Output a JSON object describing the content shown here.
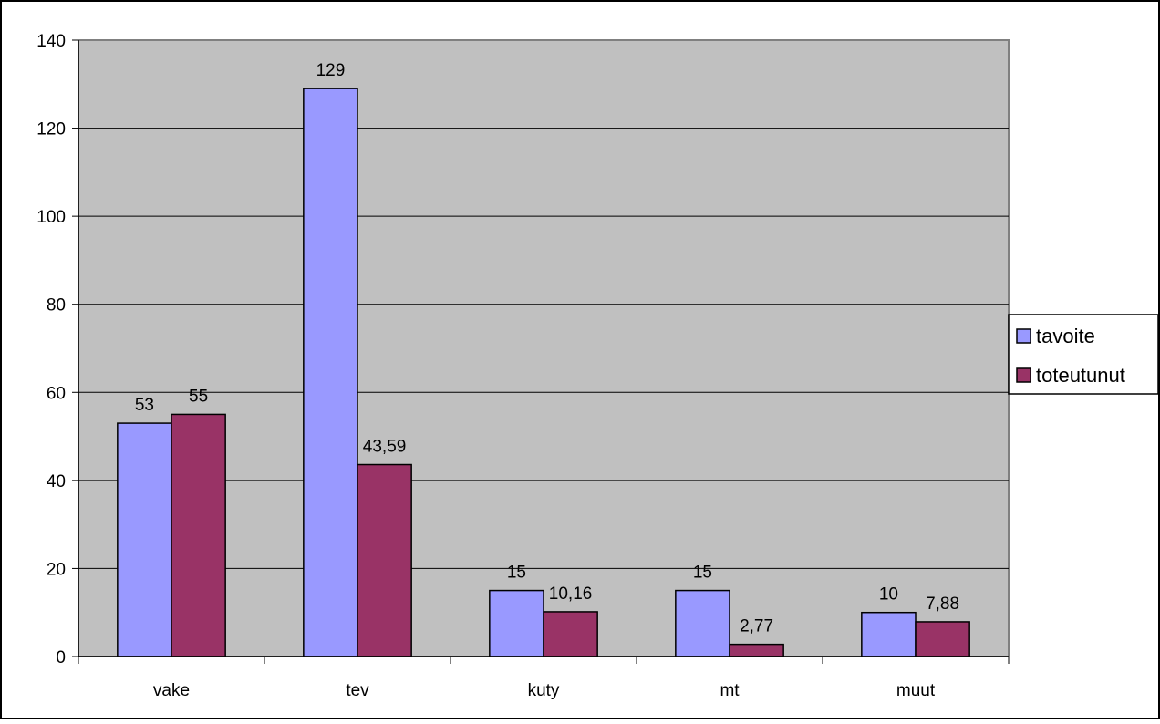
{
  "chart_data": {
    "type": "bar",
    "title": "",
    "xlabel": "",
    "ylabel": "",
    "categories": [
      "vake",
      "tev",
      "kuty",
      "mt",
      "muut"
    ],
    "series": [
      {
        "name": "tavoite",
        "color": "#9999ff",
        "values": [
          53,
          129,
          15,
          15,
          10
        ],
        "labels": [
          "53",
          "129",
          "15",
          "15",
          "10"
        ]
      },
      {
        "name": "toteutunut",
        "color": "#993366",
        "values": [
          55,
          43.59,
          10.16,
          2.77,
          7.88
        ],
        "labels": [
          "55",
          "43,59",
          "10,16",
          "2,77",
          "7,88"
        ]
      }
    ],
    "ylim": [
      0,
      140
    ],
    "yticks": [
      "0",
      "20",
      "40",
      "60",
      "80",
      "100",
      "120",
      "140"
    ],
    "grid": true,
    "plot_background": "#c0c0c0",
    "legend_position": "right"
  }
}
